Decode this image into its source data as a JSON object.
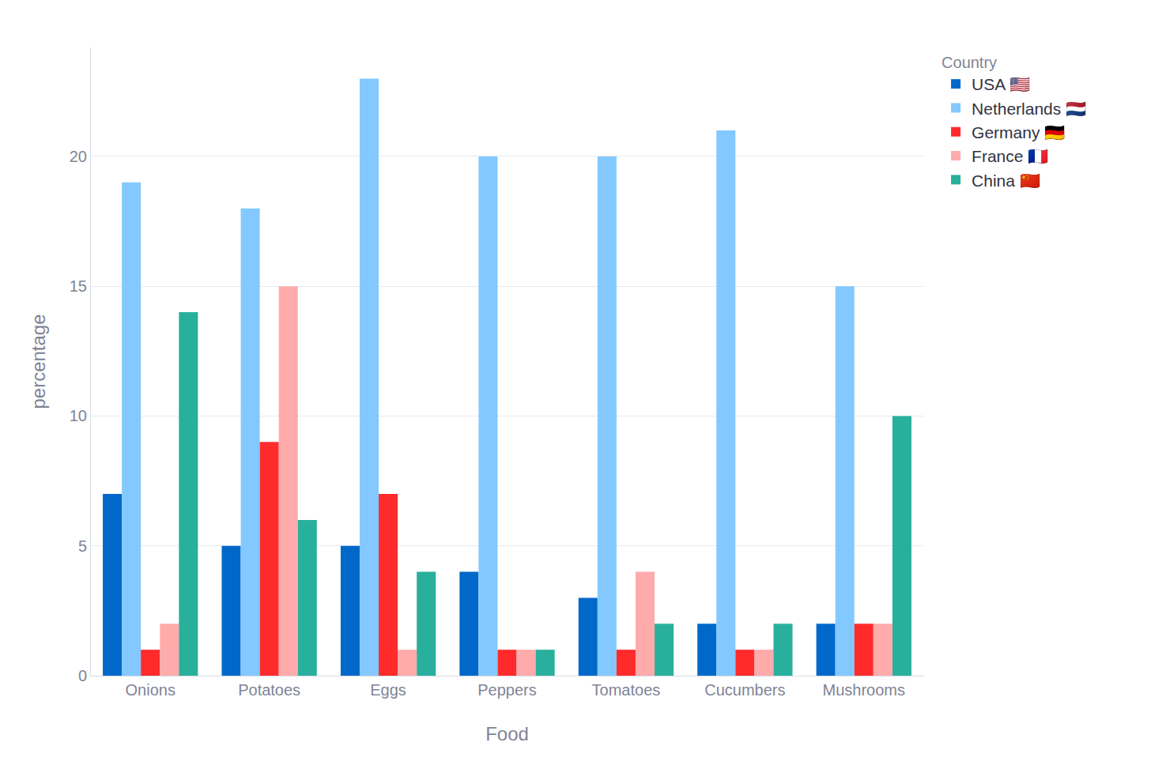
{
  "chart_data": {
    "type": "bar",
    "x_label": "Food",
    "y_label": "percentage",
    "categories": [
      "Onions",
      "Potatoes",
      "Eggs",
      "Peppers",
      "Tomatoes",
      "Cucumbers",
      "Mushrooms"
    ],
    "series": [
      {
        "name": "USA 🇺🇸",
        "color": "#0068c9",
        "values": [
          7,
          5,
          5,
          4,
          3,
          2,
          2
        ]
      },
      {
        "name": "Netherlands 🇳🇱",
        "color": "#83c9ff",
        "values": [
          19,
          18,
          23,
          20,
          20,
          21,
          15
        ]
      },
      {
        "name": "Germany 🇩🇪",
        "color": "#ff2b2b",
        "values": [
          1,
          9,
          7,
          1,
          1,
          1,
          2
        ]
      },
      {
        "name": "France 🇫🇷",
        "color": "#ffabab",
        "values": [
          2,
          15,
          1,
          1,
          4,
          1,
          2
        ]
      },
      {
        "name": "China 🇨🇳",
        "color": "#29b09d",
        "values": [
          14,
          6,
          4,
          1,
          2,
          2,
          10
        ]
      }
    ],
    "legend_title": "Country",
    "legend": "right",
    "ylim": [
      0,
      24.2
    ],
    "yticks": [
      0,
      5,
      10,
      15,
      20
    ],
    "grid": true
  }
}
